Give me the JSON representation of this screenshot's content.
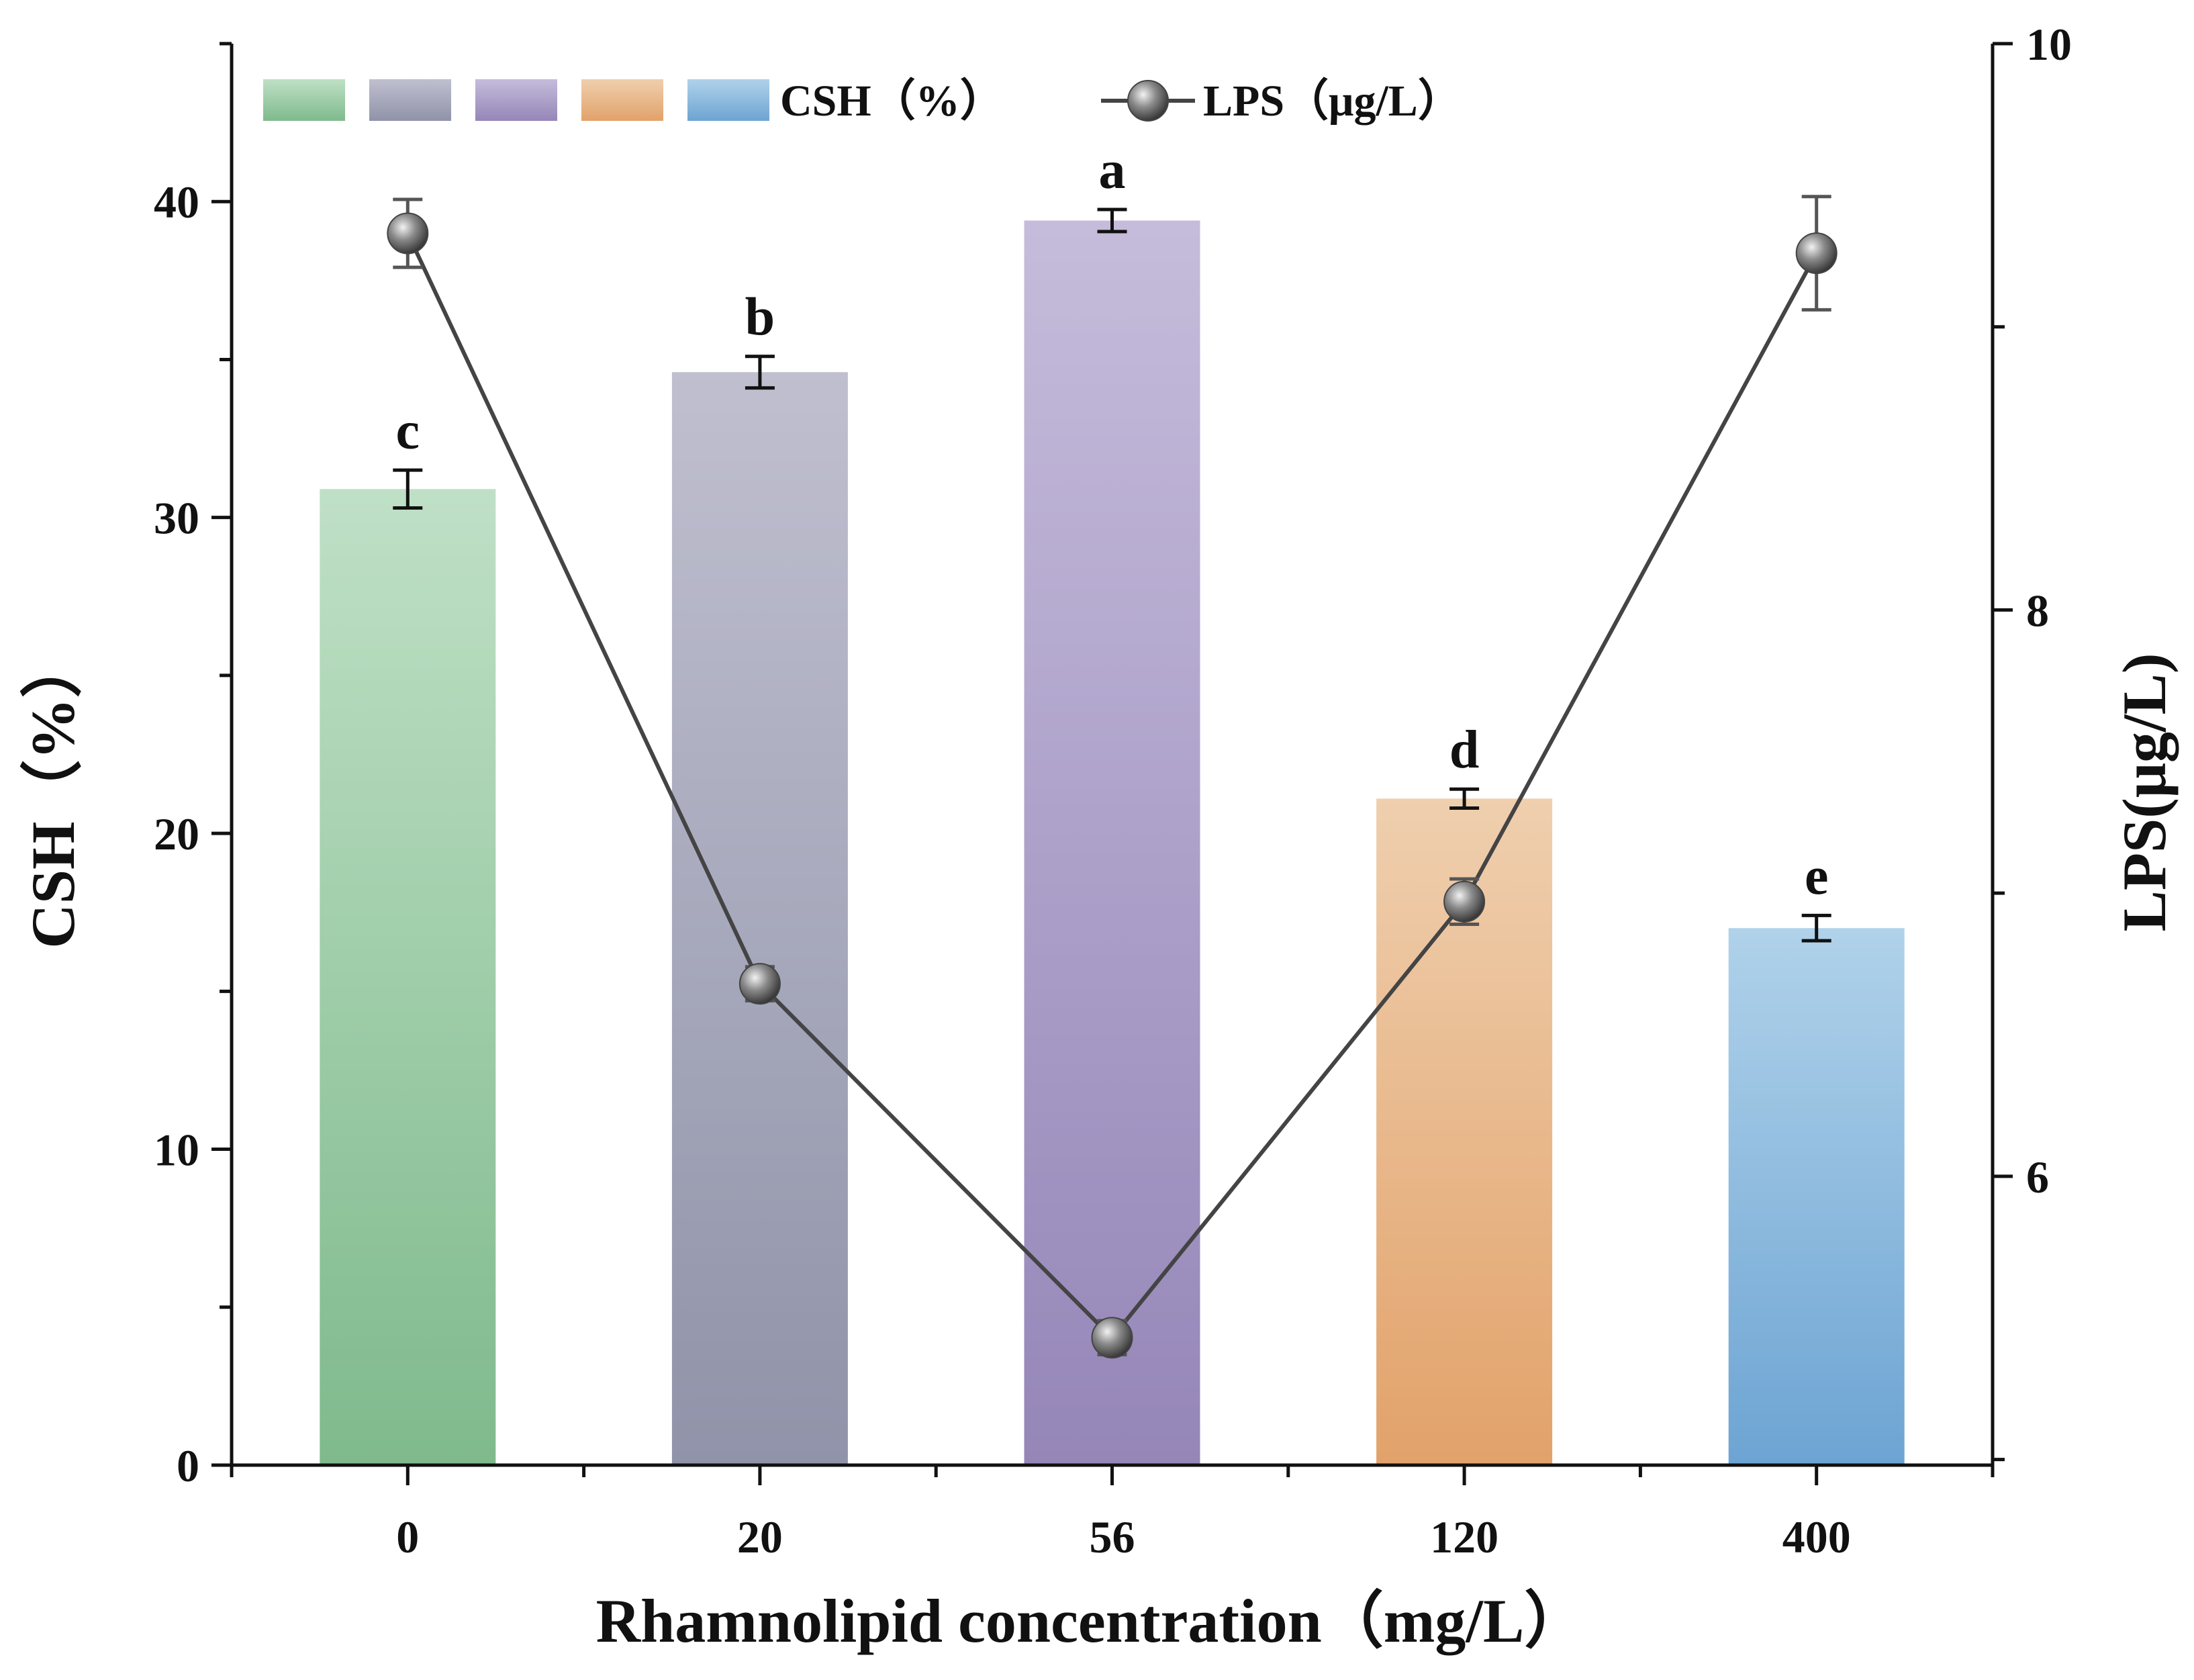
{
  "chart_data": {
    "type": "bar+line",
    "categories": [
      "0",
      "20",
      "56",
      "120",
      "400"
    ],
    "xlabel": "Rhamnolipid concentration（mg/L）",
    "left_axis": {
      "label": "CSH（%）",
      "ylim": [
        0,
        45
      ],
      "ticks": [
        "0",
        "10",
        "20",
        "30",
        "40"
      ],
      "tick_values": [
        0,
        10,
        20,
        30,
        40
      ],
      "minor_step": 5
    },
    "right_axis": {
      "label": "LPS(μg/L)",
      "ylim": [
        4.98,
        10
      ],
      "ticks": [
        "6",
        "8",
        "10"
      ],
      "tick_values": [
        6,
        8,
        10
      ],
      "minor_step": 1
    },
    "series": [
      {
        "name": "CSH（%）",
        "kind": "bar",
        "axis": "left",
        "values": [
          30.9,
          34.6,
          39.4,
          21.1,
          17.0
        ],
        "errors": [
          0.6,
          0.5,
          0.35,
          0.3,
          0.4
        ],
        "significance": [
          "c",
          "b",
          "a",
          "d",
          "e"
        ],
        "colors_top": [
          "#bfe0c6",
          "#bfbfcf",
          "#c5bcdb",
          "#efcfae",
          "#b0d2ea"
        ],
        "colors_bottom": [
          "#7fba8c",
          "#9093a9",
          "#9586b8",
          "#e2a26a",
          "#6da4d3"
        ]
      },
      {
        "name": "LPS（μg/L）",
        "kind": "line",
        "axis": "right",
        "values": [
          9.33,
          6.68,
          5.43,
          6.97,
          9.26
        ],
        "errors": [
          0.12,
          0.06,
          0.06,
          0.08,
          0.2
        ],
        "color": "#444444"
      }
    ],
    "legend": {
      "placement": "top-left",
      "bar_label": "CSH（%）",
      "line_label": "LPS（μg/L）"
    }
  }
}
